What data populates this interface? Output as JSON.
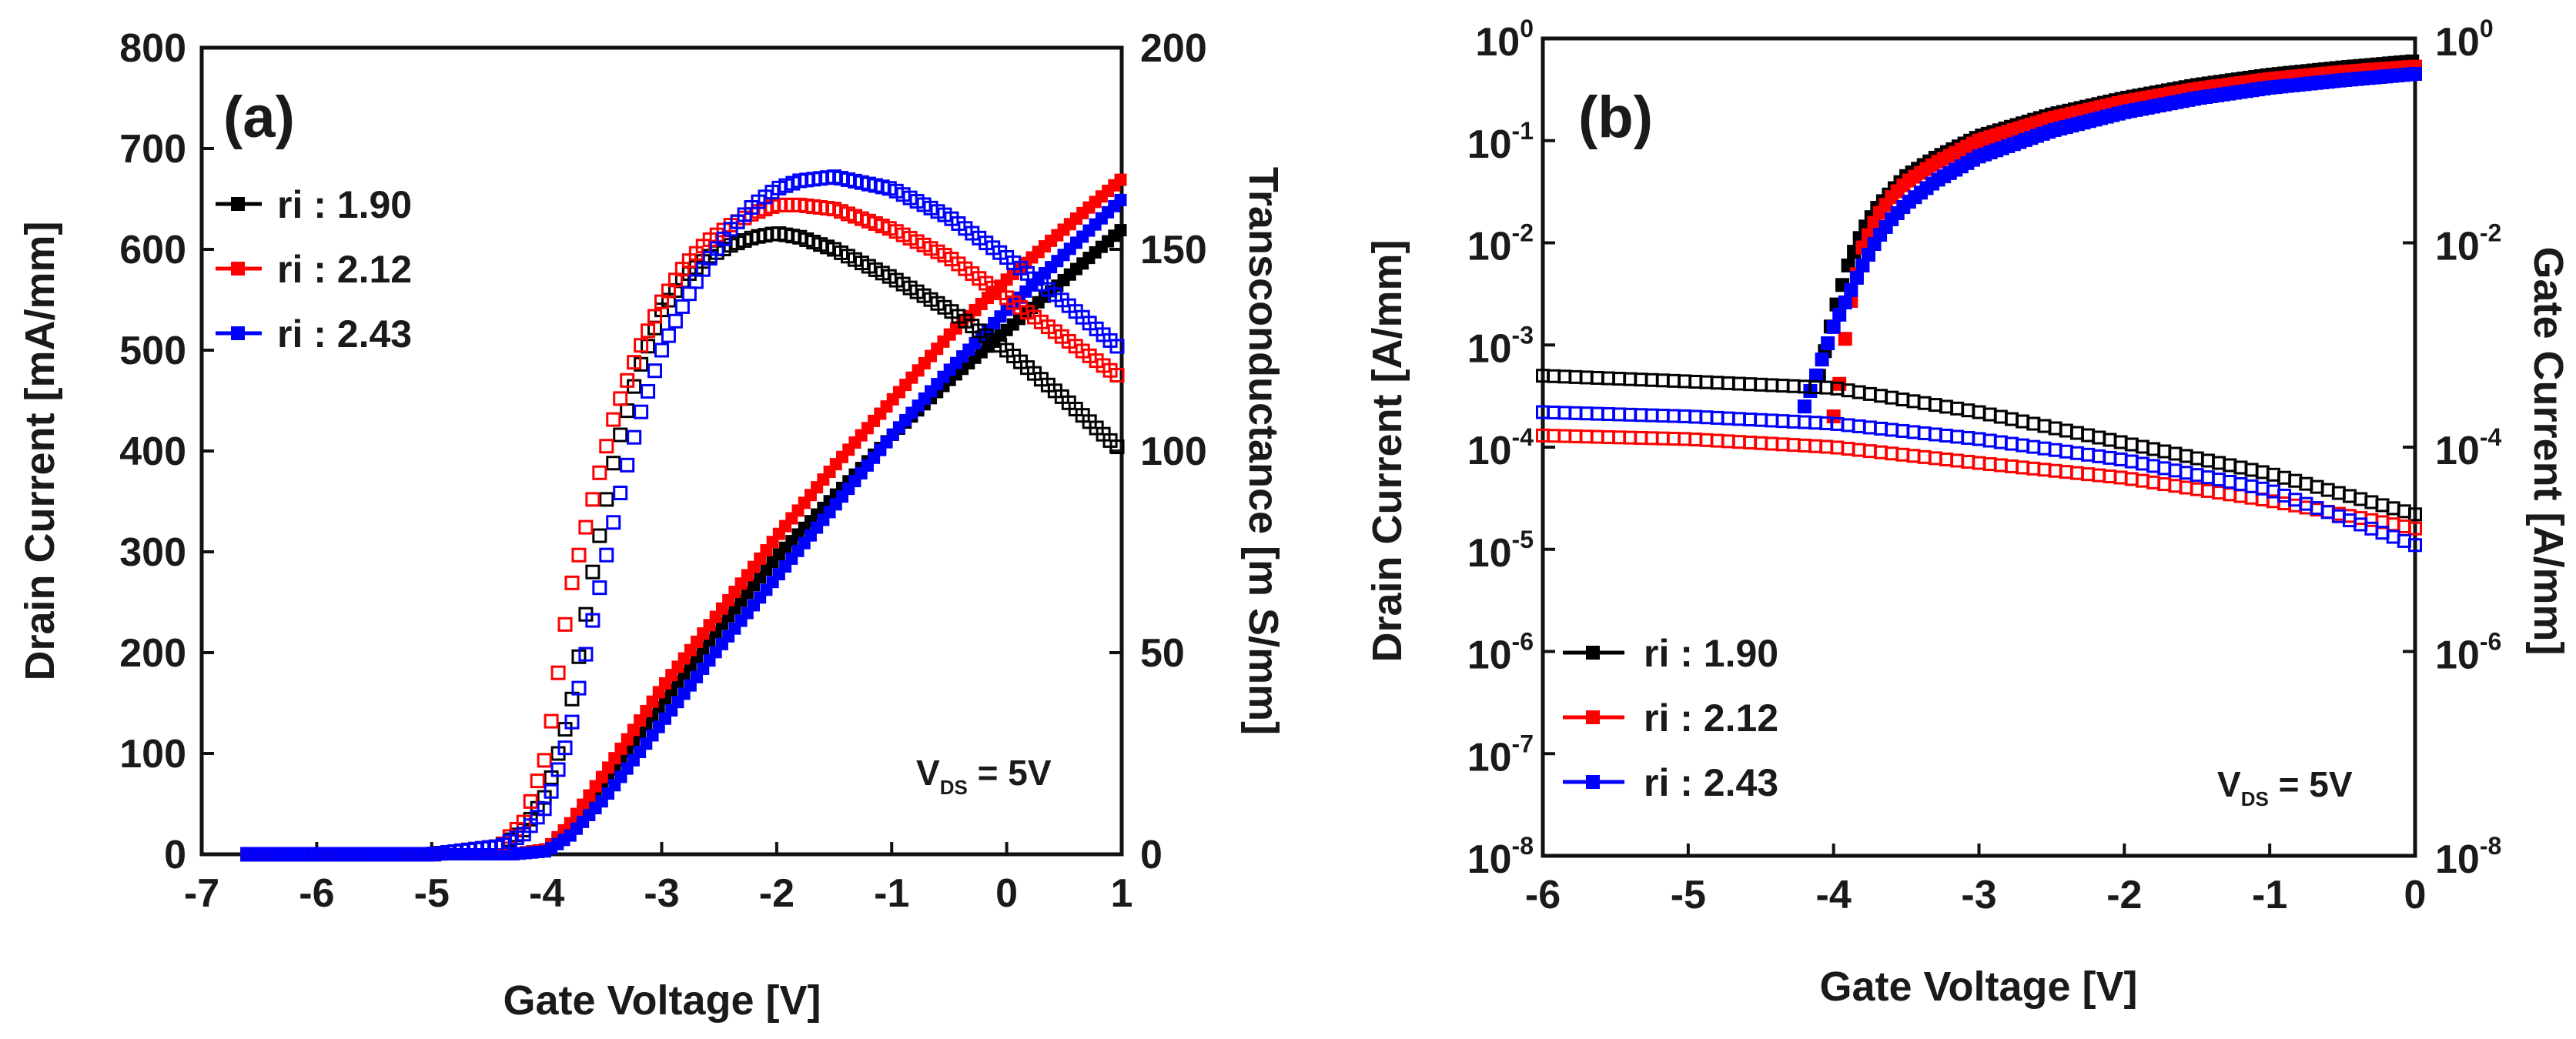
{
  "chart_data": [
    {
      "panel": "(a)",
      "type": "line",
      "xlabel": "Gate Voltage [V]",
      "ylabel": "Drain Current [mA/mm]",
      "y2label": "Transconductance [m S/mm]",
      "xlim": [
        -7,
        1
      ],
      "ylim": [
        0,
        800
      ],
      "y2lim": [
        0,
        200
      ],
      "xticks": [
        "-7",
        "-6",
        "-5",
        "-4",
        "-3",
        "-2",
        "-1",
        "0",
        "1"
      ],
      "yticks": [
        "0",
        "100",
        "200",
        "300",
        "400",
        "500",
        "600",
        "700",
        "800"
      ],
      "y2ticks": [
        "0",
        "50",
        "100",
        "150",
        "200"
      ],
      "annotation": {
        "main": "V",
        "sub": "DS",
        "rest": " = 5V"
      },
      "legend": [
        "ri : 1.90",
        "ri : 2.12",
        "ri : 2.43"
      ],
      "series": [
        {
          "name": "ri : 1.90",
          "color": "#000000",
          "kind": "drain",
          "x": [
            -6.6,
            -5,
            -4.3,
            -4.0,
            -3.8,
            -3.5,
            -3.0,
            -2.5,
            -2.0,
            -1.5,
            -1.0,
            -0.5,
            0,
            0.5,
            1.0
          ],
          "y": [
            0,
            0,
            0,
            5,
            25,
            70,
            150,
            225,
            295,
            355,
            415,
            470,
            520,
            570,
            620
          ]
        },
        {
          "name": "ri : 2.12",
          "color": "#ff0000",
          "kind": "drain",
          "x": [
            -6.6,
            -5,
            -4.3,
            -4.0,
            -3.8,
            -3.5,
            -3.0,
            -2.5,
            -2.0,
            -1.5,
            -1.0,
            -0.5,
            0,
            0.5,
            1.0
          ],
          "y": [
            0,
            0,
            0,
            5,
            30,
            80,
            165,
            240,
            315,
            385,
            450,
            515,
            570,
            620,
            670
          ]
        },
        {
          "name": "ri : 2.43",
          "color": "#0000ff",
          "kind": "drain",
          "x": [
            -6.6,
            -5,
            -4.3,
            -4.0,
            -3.8,
            -3.5,
            -3.0,
            -2.5,
            -2.0,
            -1.5,
            -1.0,
            -0.5,
            0,
            0.5,
            1.0
          ],
          "y": [
            0,
            0,
            0,
            3,
            18,
            55,
            130,
            205,
            275,
            345,
            415,
            480,
            540,
            595,
            650
          ]
        },
        {
          "name": "ri : 1.90",
          "color": "#000000",
          "kind": "gm",
          "x": [
            -6.6,
            -5,
            -4.4,
            -4.2,
            -4.0,
            -3.8,
            -3.6,
            -3.4,
            -3.2,
            -3.0,
            -2.8,
            -2.6,
            -2.4,
            -2.2,
            -2.0,
            -1.8,
            -1.5,
            -1.0,
            -0.5,
            0,
            0.5,
            1.0
          ],
          "y": [
            0,
            0,
            2,
            6,
            15,
            35,
            70,
            100,
            120,
            135,
            143,
            148,
            151,
            153,
            154,
            153,
            150,
            143,
            135,
            125,
            113,
            100
          ]
        },
        {
          "name": "ri : 2.12",
          "color": "#ff0000",
          "kind": "gm",
          "x": [
            -6.6,
            -5,
            -4.4,
            -4.2,
            -4.0,
            -3.8,
            -3.6,
            -3.4,
            -3.2,
            -3.0,
            -2.8,
            -2.6,
            -2.4,
            -2.2,
            -2.0,
            -1.8,
            -1.5,
            -1.0,
            -0.5,
            0,
            0.5,
            1.0
          ],
          "y": [
            0,
            0,
            2,
            8,
            25,
            65,
            88,
            110,
            125,
            137,
            146,
            152,
            156,
            159,
            161,
            161,
            160,
            155,
            148,
            138,
            128,
            118
          ]
        },
        {
          "name": "ri : 2.43",
          "color": "#0000ff",
          "kind": "gm",
          "x": [
            -6.6,
            -5,
            -4.4,
            -4.2,
            -4.0,
            -3.8,
            -3.6,
            -3.4,
            -3.2,
            -3.0,
            -2.8,
            -2.6,
            -2.4,
            -2.2,
            -2.0,
            -1.8,
            -1.5,
            -1.0,
            -0.5,
            0,
            0.5,
            1.0
          ],
          "y": [
            0,
            0,
            2,
            5,
            12,
            30,
            58,
            85,
            108,
            125,
            137,
            147,
            155,
            161,
            165,
            167,
            168,
            165,
            158,
            148,
            137,
            125
          ]
        }
      ]
    },
    {
      "panel": "(b)",
      "type": "line",
      "yscale": "log",
      "xlabel": "Gate Voltage [V]",
      "ylabel": "Drain Current [A/mm]",
      "y2label": "Gate Current [A/mm]",
      "xlim": [
        -6,
        0
      ],
      "ylim": [
        1e-08,
        1
      ],
      "y2lim": [
        1e-08,
        1
      ],
      "xticks": [
        "-6",
        "-5",
        "-4",
        "-3",
        "-2",
        "-1",
        "0"
      ],
      "yticks": [
        {
          "base": "10",
          "exp": "-8"
        },
        {
          "base": "10",
          "exp": "-7"
        },
        {
          "base": "10",
          "exp": "-6"
        },
        {
          "base": "10",
          "exp": "-5"
        },
        {
          "base": "10",
          "exp": "-4"
        },
        {
          "base": "10",
          "exp": "-3"
        },
        {
          "base": "10",
          "exp": "-2"
        },
        {
          "base": "10",
          "exp": "-1"
        },
        {
          "base": "10",
          "exp": "0"
        }
      ],
      "y2ticks": [
        {
          "base": "10",
          "exp": "-8"
        },
        {
          "base": "10",
          "exp": "-6"
        },
        {
          "base": "10",
          "exp": "-4"
        },
        {
          "base": "10",
          "exp": "-2"
        },
        {
          "base": "10",
          "exp": "0"
        }
      ],
      "annotation": {
        "main": "V",
        "sub": "DS",
        "rest": " = 5V"
      },
      "legend": [
        "ri : 1.90",
        "ri : 2.12",
        "ri : 2.43"
      ],
      "series": [
        {
          "name": "ri : 1.90",
          "color": "#000000",
          "kind": "drain",
          "x": [
            -4.1,
            -4.0,
            -3.9,
            -3.8,
            -3.7,
            -3.6,
            -3.5,
            -3.3,
            -3.0,
            -2.5,
            -2.0,
            -1.5,
            -1.0,
            -0.5,
            0
          ],
          "y": [
            0.0005,
            0.002,
            0.006,
            0.013,
            0.022,
            0.032,
            0.045,
            0.068,
            0.11,
            0.18,
            0.26,
            0.35,
            0.44,
            0.52,
            0.6
          ]
        },
        {
          "name": "ri : 2.12",
          "color": "#ff0000",
          "kind": "drain",
          "x": [
            -4.0,
            -3.95,
            -3.9,
            -3.8,
            -3.7,
            -3.6,
            -3.5,
            -3.3,
            -3.0,
            -2.5,
            -2.0,
            -1.5,
            -1.0,
            -0.5,
            0
          ],
          "y": [
            0.0002,
            0.0005,
            0.002,
            0.009,
            0.018,
            0.028,
            0.039,
            0.06,
            0.1,
            0.165,
            0.24,
            0.32,
            0.4,
            0.47,
            0.53
          ]
        },
        {
          "name": "ri : 2.43",
          "color": "#0000ff",
          "kind": "drain",
          "x": [
            -4.2,
            -4.1,
            -4.0,
            -3.9,
            -3.8,
            -3.7,
            -3.6,
            -3.5,
            -3.3,
            -3.0,
            -2.5,
            -2.0,
            -1.5,
            -1.0,
            -0.5,
            0
          ],
          "y": [
            0.00025,
            0.0006,
            0.0015,
            0.003,
            0.006,
            0.011,
            0.017,
            0.024,
            0.04,
            0.07,
            0.125,
            0.19,
            0.26,
            0.33,
            0.39,
            0.45
          ]
        },
        {
          "name": "ri : 1.90",
          "color": "#000000",
          "kind": "gate",
          "x": [
            -6,
            -5,
            -4,
            -3,
            -2,
            -1,
            0
          ],
          "y": [
            0.0005,
            0.00044,
            0.00038,
            0.00022,
            0.00011,
            5.5e-05,
            2.2e-05
          ]
        },
        {
          "name": "ri : 2.12",
          "color": "#ff0000",
          "kind": "gate",
          "x": [
            -6,
            -5,
            -4,
            -3,
            -2,
            -1,
            0
          ],
          "y": [
            0.00013,
            0.00012,
            0.0001,
            7e-05,
            5e-05,
            3e-05,
            1.6e-05
          ]
        },
        {
          "name": "ri : 2.43",
          "color": "#0000ff",
          "kind": "gate",
          "x": [
            -6,
            -5,
            -4,
            -3,
            -2,
            -1,
            0
          ],
          "y": [
            0.00022,
            0.0002,
            0.00017,
            0.00012,
            7.5e-05,
            3.8e-05,
            1.1e-05
          ]
        }
      ]
    }
  ]
}
